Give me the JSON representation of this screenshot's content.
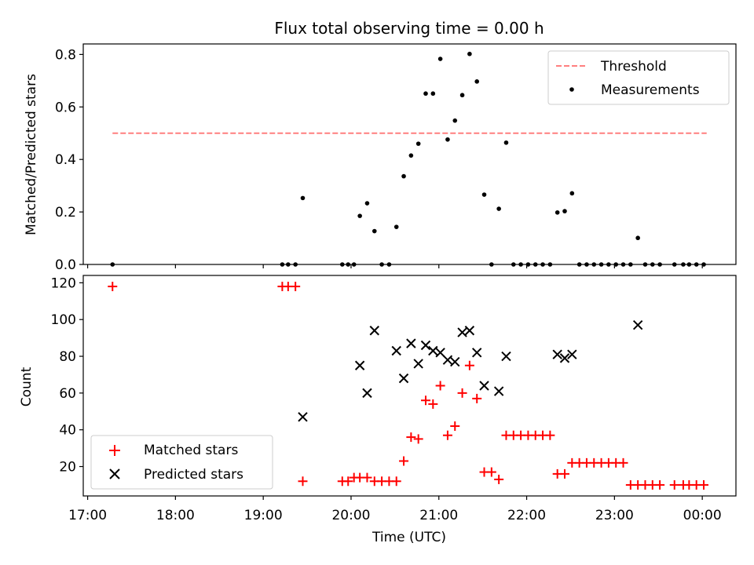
{
  "chart_data": [
    {
      "type": "scatter",
      "title": "Flux total observing time = 0.00 h",
      "ylabel": "Matched/Predicted stars",
      "xlabel": "",
      "xlim": [
        "16:57",
        "00:23"
      ],
      "ylim": [
        0,
        0.84
      ],
      "yticks": [
        "0.0",
        "0.2",
        "0.4",
        "0.6",
        "0.8"
      ],
      "legend": {
        "placement": "top-right",
        "entries": [
          "Threshold",
          "Measurements"
        ]
      },
      "threshold": {
        "name": "Threshold",
        "y": 0.5,
        "x_start": "17:17",
        "x_end": "00:03",
        "color": "#ff7f7f",
        "style": "dashed"
      },
      "series": [
        {
          "name": "Measurements",
          "color": "#000000",
          "marker": "dot",
          "points": [
            [
              "17:17",
              0.0
            ],
            [
              "19:13",
              0.0
            ],
            [
              "19:17",
              0.0
            ],
            [
              "19:22",
              0.0
            ],
            [
              "19:27",
              0.253
            ],
            [
              "19:54",
              0.0
            ],
            [
              "19:58",
              0.0
            ],
            [
              "20:02",
              0.0
            ],
            [
              "20:06",
              0.185
            ],
            [
              "20:11",
              0.233
            ],
            [
              "20:16",
              0.127
            ],
            [
              "20:21",
              0.0
            ],
            [
              "20:26",
              0.0
            ],
            [
              "20:31",
              0.143
            ],
            [
              "20:36",
              0.336
            ],
            [
              "20:41",
              0.415
            ],
            [
              "20:46",
              0.46
            ],
            [
              "20:51",
              0.651
            ],
            [
              "20:56",
              0.651
            ],
            [
              "21:01",
              0.783
            ],
            [
              "21:06",
              0.476
            ],
            [
              "21:11",
              0.548
            ],
            [
              "21:16",
              0.645
            ],
            [
              "21:21",
              0.802
            ],
            [
              "21:26",
              0.697
            ],
            [
              "21:31",
              0.266
            ],
            [
              "21:36",
              0.0
            ],
            [
              "21:41",
              0.212
            ],
            [
              "21:46",
              0.464
            ],
            [
              "21:51",
              0.0
            ],
            [
              "21:56",
              0.0
            ],
            [
              "22:01",
              0.0
            ],
            [
              "22:06",
              0.0
            ],
            [
              "22:11",
              0.0
            ],
            [
              "22:16",
              0.0
            ],
            [
              "22:21",
              0.198
            ],
            [
              "22:26",
              0.203
            ],
            [
              "22:31",
              0.271
            ],
            [
              "22:36",
              0.0
            ],
            [
              "22:41",
              0.0
            ],
            [
              "22:46",
              0.0
            ],
            [
              "22:51",
              0.0
            ],
            [
              "22:56",
              0.0
            ],
            [
              "23:01",
              0.0
            ],
            [
              "23:06",
              0.0
            ],
            [
              "23:11",
              0.0
            ],
            [
              "23:16",
              0.101
            ],
            [
              "23:21",
              0.0
            ],
            [
              "23:26",
              0.0
            ],
            [
              "23:31",
              0.0
            ],
            [
              "23:41",
              0.0
            ],
            [
              "23:47",
              0.0
            ],
            [
              "23:51",
              0.0
            ],
            [
              "23:56",
              0.0
            ],
            [
              "00:01",
              0.0
            ]
          ]
        }
      ]
    },
    {
      "type": "scatter",
      "title": "",
      "ylabel": "Count",
      "xlabel": "Time (UTC)",
      "xlim": [
        "16:57",
        "00:23"
      ],
      "ylim": [
        4,
        124
      ],
      "yticks": [
        "20",
        "40",
        "60",
        "80",
        "100",
        "120"
      ],
      "xticks": [
        "17:00",
        "18:00",
        "19:00",
        "20:00",
        "21:00",
        "22:00",
        "23:00",
        "00:00"
      ],
      "legend": {
        "placement": "bottom-left",
        "entries": [
          "Matched stars",
          "Predicted stars"
        ]
      },
      "series": [
        {
          "name": "Matched stars",
          "color": "#ff0000",
          "marker": "plus",
          "points": [
            [
              "17:17",
              118
            ],
            [
              "19:13",
              118
            ],
            [
              "19:17",
              118
            ],
            [
              "19:22",
              118
            ],
            [
              "19:27",
              12
            ],
            [
              "19:54",
              12
            ],
            [
              "19:58",
              12
            ],
            [
              "20:02",
              14
            ],
            [
              "20:06",
              14
            ],
            [
              "20:11",
              14
            ],
            [
              "20:16",
              12
            ],
            [
              "20:21",
              12
            ],
            [
              "20:26",
              12
            ],
            [
              "20:31",
              12
            ],
            [
              "20:36",
              23
            ],
            [
              "20:41",
              36
            ],
            [
              "20:46",
              35
            ],
            [
              "20:51",
              56
            ],
            [
              "20:56",
              54
            ],
            [
              "21:01",
              64
            ],
            [
              "21:06",
              37
            ],
            [
              "21:11",
              42
            ],
            [
              "21:16",
              60
            ],
            [
              "21:21",
              75
            ],
            [
              "21:26",
              57
            ],
            [
              "21:31",
              17
            ],
            [
              "21:36",
              17
            ],
            [
              "21:41",
              13
            ],
            [
              "21:46",
              37
            ],
            [
              "21:51",
              37
            ],
            [
              "21:56",
              37
            ],
            [
              "22:01",
              37
            ],
            [
              "22:06",
              37
            ],
            [
              "22:11",
              37
            ],
            [
              "22:16",
              37
            ],
            [
              "22:21",
              16
            ],
            [
              "22:26",
              16
            ],
            [
              "22:31",
              22
            ],
            [
              "22:36",
              22
            ],
            [
              "22:41",
              22
            ],
            [
              "22:46",
              22
            ],
            [
              "22:51",
              22
            ],
            [
              "22:56",
              22
            ],
            [
              "23:01",
              22
            ],
            [
              "23:06",
              22
            ],
            [
              "23:11",
              10
            ],
            [
              "23:16",
              10
            ],
            [
              "23:21",
              10
            ],
            [
              "23:26",
              10
            ],
            [
              "23:31",
              10
            ],
            [
              "23:41",
              10
            ],
            [
              "23:47",
              10
            ],
            [
              "23:51",
              10
            ],
            [
              "23:56",
              10
            ],
            [
              "00:01",
              10
            ]
          ]
        },
        {
          "name": "Predicted stars",
          "color": "#000000",
          "marker": "x",
          "points": [
            [
              "19:27",
              47
            ],
            [
              "20:06",
              75
            ],
            [
              "20:11",
              60
            ],
            [
              "20:16",
              94
            ],
            [
              "20:31",
              83
            ],
            [
              "20:36",
              68
            ],
            [
              "20:41",
              87
            ],
            [
              "20:46",
              76
            ],
            [
              "20:51",
              86
            ],
            [
              "20:56",
              83
            ],
            [
              "21:01",
              82
            ],
            [
              "21:06",
              78
            ],
            [
              "21:11",
              77
            ],
            [
              "21:16",
              93
            ],
            [
              "21:21",
              94
            ],
            [
              "21:26",
              82
            ],
            [
              "21:31",
              64
            ],
            [
              "21:41",
              61
            ],
            [
              "21:46",
              80
            ],
            [
              "22:21",
              81
            ],
            [
              "22:26",
              79
            ],
            [
              "22:31",
              81
            ],
            [
              "23:16",
              97
            ]
          ]
        }
      ]
    }
  ]
}
